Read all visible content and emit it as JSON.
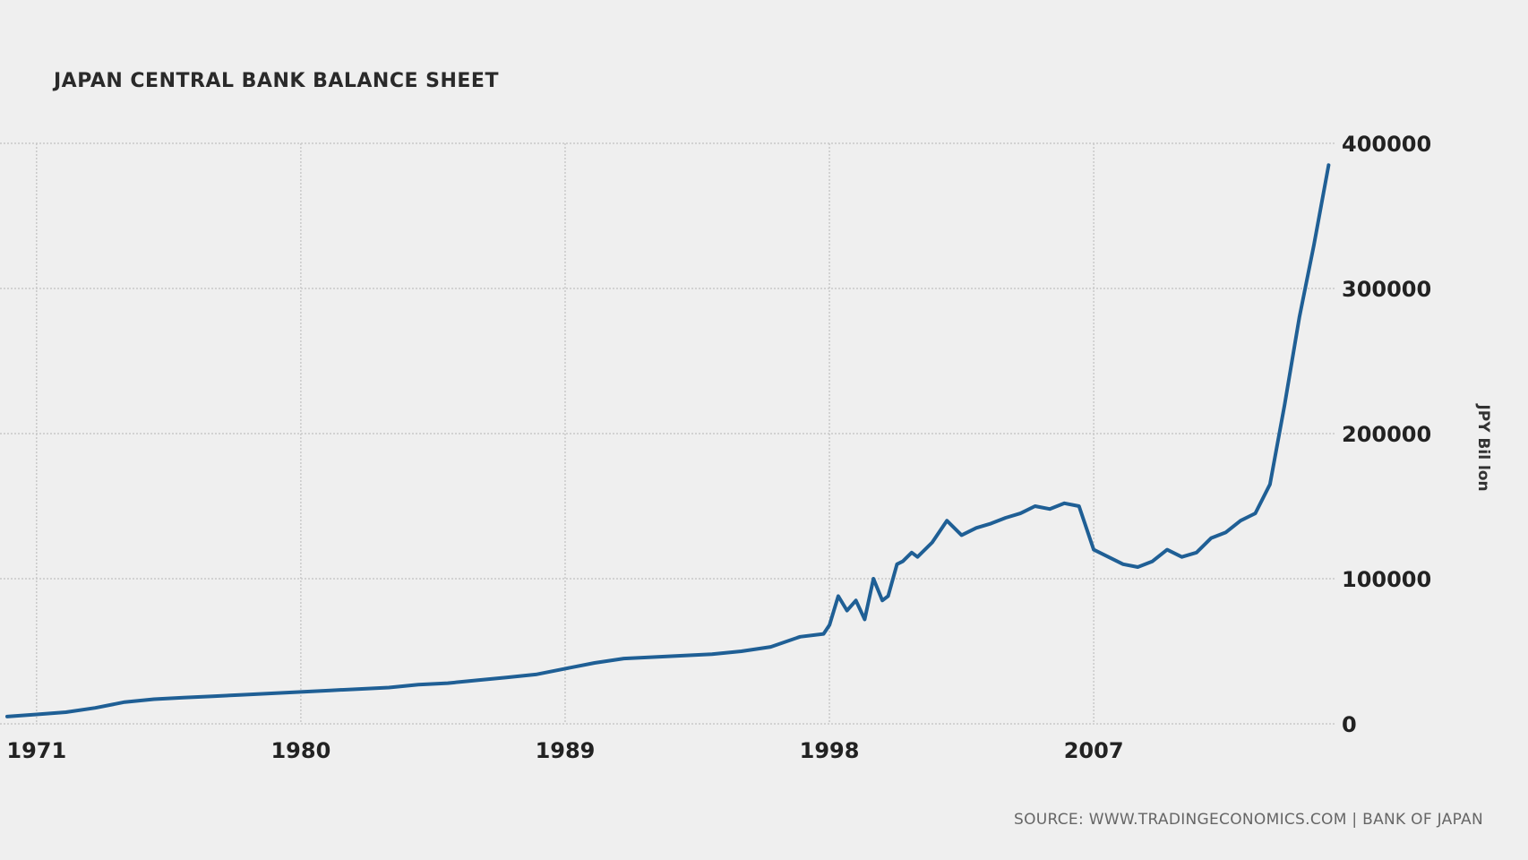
{
  "chart_data": {
    "type": "line",
    "title": "JAPAN CENTRAL BANK BALANCE SHEET",
    "xlabel": "",
    "ylabel": "JPY Bil lon",
    "source": "SOURCE: WWW.TRADINGECONOMICS.COM | BANK OF JAPAN",
    "xlim": [
      1970,
      2015.2
    ],
    "ylim": [
      0,
      400000
    ],
    "x_ticks": [
      1971,
      1980,
      1989,
      1998,
      2007
    ],
    "x_tick_labels": [
      "1971",
      "1980",
      "1989",
      "1998",
      "2007"
    ],
    "y_ticks": [
      0,
      100000,
      200000,
      300000,
      400000
    ],
    "y_tick_labels": [
      "0",
      "100000",
      "200000",
      "300000",
      "400000"
    ],
    "grid": true,
    "series": [
      {
        "name": "Japan Central Bank Balance Sheet",
        "color": "#1f5f95",
        "x": [
          1970.0,
          1971.0,
          1972.0,
          1973.0,
          1974.0,
          1975.0,
          1976.0,
          1977.0,
          1978.0,
          1979.0,
          1980.0,
          1981.0,
          1982.0,
          1983.0,
          1984.0,
          1985.0,
          1986.0,
          1987.0,
          1988.0,
          1989.0,
          1990.0,
          1991.0,
          1992.0,
          1993.0,
          1994.0,
          1995.0,
          1996.0,
          1997.0,
          1997.8,
          1998.0,
          1998.3,
          1998.6,
          1998.9,
          1999.2,
          1999.5,
          1999.8,
          2000.0,
          2000.3,
          2000.5,
          2000.8,
          2001.0,
          2001.5,
          2002.0,
          2002.5,
          2003.0,
          2003.5,
          2004.0,
          2004.5,
          2005.0,
          2005.5,
          2006.0,
          2006.5,
          2007.0,
          2007.5,
          2008.0,
          2008.5,
          2009.0,
          2009.5,
          2010.0,
          2010.5,
          2011.0,
          2011.5,
          2012.0,
          2012.5,
          2013.0,
          2013.5,
          2014.0,
          2014.5,
          2015.0
        ],
        "values": [
          5000,
          6500,
          8000,
          11000,
          15000,
          17000,
          18000,
          19000,
          20000,
          21000,
          22000,
          23000,
          24000,
          25000,
          27000,
          28000,
          30000,
          32000,
          34000,
          38000,
          42000,
          45000,
          46000,
          47000,
          48000,
          50000,
          53000,
          60000,
          62000,
          68000,
          88000,
          78000,
          85000,
          72000,
          100000,
          85000,
          88000,
          110000,
          112000,
          118000,
          115000,
          125000,
          140000,
          130000,
          135000,
          138000,
          142000,
          145000,
          150000,
          148000,
          152000,
          150000,
          120000,
          115000,
          110000,
          108000,
          112000,
          120000,
          115000,
          118000,
          128000,
          132000,
          140000,
          145000,
          165000,
          220000,
          280000,
          330000,
          385000
        ]
      }
    ]
  }
}
